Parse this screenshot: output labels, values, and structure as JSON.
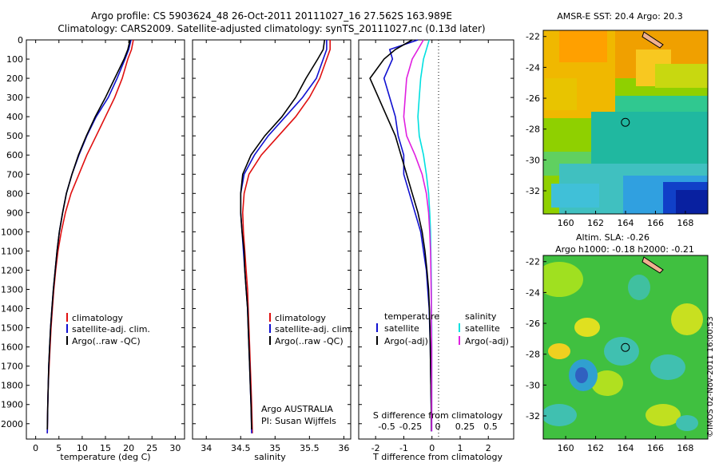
{
  "title_line1": "Argo profile: CS 5903624_48 26-Oct-2011 20111027_16 27.562S 163.989E",
  "title_line2": "Climatology: CARS2009. Satellite-adjusted climatology: synTS_20111027.nc (0.13d later)",
  "side_stamp": "©IMOS 02-Nov-2011 16:00:53",
  "colors": {
    "climatology": "#e01010",
    "satellite": "#1010d0",
    "argo": "#000000",
    "sal_sat": "#00e0e0",
    "sal_argo": "#e020e0"
  },
  "chart_data": [
    {
      "type": "line",
      "xlabel": "temperature (deg C)",
      "ylabel": "",
      "xlim": [
        -2,
        32
      ],
      "ylim": [
        0,
        2080
      ],
      "y_reversed": true,
      "x_ticks": [
        0,
        5,
        10,
        15,
        20,
        25,
        30
      ],
      "y_ticks": [
        0,
        100,
        200,
        300,
        400,
        500,
        600,
        700,
        800,
        900,
        1000,
        1100,
        1200,
        1300,
        1400,
        1500,
        1600,
        1700,
        1800,
        1900,
        2000
      ],
      "legend": [
        "climatology",
        "satellite-adj. clim.",
        "Argo(..raw -QC)"
      ],
      "series": [
        {
          "name": "climatology",
          "color": "climatology",
          "x": [
            21,
            20.6,
            19.8,
            18.6,
            17,
            15,
            13,
            11,
            9.3,
            7.6,
            6.4,
            5.5,
            4.8,
            4.3,
            3.9,
            3.6,
            3.3,
            3.1,
            2.9,
            2.7,
            2.6,
            2.5
          ],
          "y": [
            0,
            50,
            100,
            200,
            300,
            400,
            500,
            600,
            700,
            800,
            900,
            1000,
            1100,
            1200,
            1300,
            1400,
            1500,
            1600,
            1700,
            1800,
            1900,
            2050
          ]
        },
        {
          "name": "satellite-adj. clim.",
          "color": "satellite",
          "x": [
            20.5,
            20,
            19.2,
            17.5,
            15.6,
            13,
            11,
            9.3,
            7.8,
            6.6,
            5.8,
            5.1,
            4.6,
            4.2,
            3.8,
            3.5,
            3.2,
            3,
            2.8,
            2.7,
            2.6,
            2.5
          ],
          "y": [
            0,
            50,
            100,
            200,
            300,
            400,
            500,
            600,
            700,
            800,
            900,
            1000,
            1100,
            1200,
            1300,
            1400,
            1500,
            1600,
            1700,
            1800,
            1900,
            2050
          ]
        },
        {
          "name": "Argo(..raw -QC)",
          "color": "argo",
          "x": [
            20.3,
            19.8,
            19,
            17,
            15,
            12.8,
            10.9,
            9.2,
            7.8,
            6.6,
            5.8,
            5.1,
            4.6,
            4.2,
            3.8,
            3.5,
            3.2,
            3,
            2.8,
            2.7,
            2.6,
            2.5
          ],
          "y": [
            0,
            50,
            100,
            200,
            300,
            400,
            500,
            600,
            700,
            800,
            900,
            1000,
            1100,
            1200,
            1300,
            1400,
            1500,
            1600,
            1700,
            1800,
            1900,
            2030
          ]
        }
      ]
    },
    {
      "type": "line",
      "xlabel": "salinity",
      "ylabel": "",
      "xlim": [
        33.8,
        36.1
      ],
      "ylim": [
        0,
        2080
      ],
      "y_reversed": true,
      "x_ticks": [
        34,
        34.5,
        35,
        35.5,
        36
      ],
      "legend": [
        "climatology",
        "satellite-adj. clim.",
        "Argo(..raw -QC)"
      ],
      "annotation": [
        "Argo AUSTRALIA",
        "PI: Susan Wijffels"
      ],
      "series": [
        {
          "name": "climatology",
          "color": "climatology",
          "x": [
            35.8,
            35.8,
            35.75,
            35.65,
            35.5,
            35.3,
            35.05,
            34.8,
            34.62,
            34.55,
            34.53,
            34.54,
            34.56,
            34.58,
            34.6,
            34.61,
            34.62,
            34.63,
            34.64,
            34.65,
            34.66,
            34.67
          ],
          "y": [
            0,
            50,
            100,
            200,
            300,
            400,
            500,
            600,
            700,
            800,
            900,
            1000,
            1100,
            1200,
            1300,
            1400,
            1500,
            1600,
            1700,
            1800,
            1900,
            2050
          ]
        },
        {
          "name": "satellite-adj. clim.",
          "color": "satellite",
          "x": [
            35.75,
            35.75,
            35.7,
            35.6,
            35.4,
            35.15,
            34.9,
            34.7,
            34.55,
            34.5,
            34.5,
            34.52,
            34.54,
            34.56,
            34.58,
            34.6,
            34.61,
            34.62,
            34.63,
            34.64,
            34.65,
            34.66
          ],
          "y": [
            0,
            50,
            100,
            200,
            300,
            400,
            500,
            600,
            700,
            800,
            900,
            1000,
            1100,
            1200,
            1300,
            1400,
            1500,
            1600,
            1700,
            1800,
            1900,
            2050
          ]
        },
        {
          "name": "Argo(..raw -QC)",
          "color": "argo",
          "x": [
            35.72,
            35.7,
            35.62,
            35.45,
            35.3,
            35.1,
            34.85,
            34.65,
            34.53,
            34.5,
            34.5,
            34.52,
            34.55,
            34.56,
            34.58,
            34.6,
            34.61,
            34.62,
            34.63,
            34.64,
            34.65,
            34.66
          ],
          "y": [
            0,
            50,
            100,
            200,
            300,
            400,
            500,
            600,
            700,
            800,
            900,
            1000,
            1100,
            1200,
            1300,
            1400,
            1500,
            1600,
            1700,
            1800,
            1900,
            2030
          ]
        }
      ]
    },
    {
      "type": "line",
      "xlabel": "T difference from climatology",
      "ylabel": "",
      "top_axis_label": "S difference from climatology",
      "xlim": [
        -2.6,
        2.9
      ],
      "ylim": [
        0,
        2080
      ],
      "y_reversed": true,
      "x_ticks": [
        -2,
        -1,
        0,
        1,
        2
      ],
      "top_ticks": [
        "-0.5",
        "-0.25",
        "0",
        "0.25",
        "0.5"
      ],
      "legend_temperature": [
        "temperature",
        "satellite",
        "Argo(-adj)"
      ],
      "legend_salinity": [
        "salinity",
        "satellite",
        "Argo(-adj)"
      ],
      "series": [
        {
          "name": "satellite",
          "color": "satellite",
          "x": [
            -0.5,
            -1.5,
            -1.4,
            -1.7,
            -1.5,
            -1.3,
            -1.2,
            -1,
            -1,
            -0.8,
            -0.6,
            -0.4,
            -0.3,
            -0.2,
            -0.15,
            -0.1,
            -0.08,
            -0.06,
            -0.05,
            -0.04,
            -0.03,
            -0.02
          ],
          "y": [
            0,
            50,
            100,
            200,
            300,
            400,
            500,
            600,
            700,
            800,
            900,
            1000,
            1100,
            1200,
            1300,
            1400,
            1500,
            1600,
            1700,
            1800,
            1900,
            2040
          ]
        },
        {
          "name": "Argo(-adj)",
          "color": "argo",
          "x": [
            -0.7,
            -1.3,
            -1.7,
            -2.2,
            -1.9,
            -1.6,
            -1.3,
            -1.1,
            -0.9,
            -0.7,
            -0.5,
            -0.35,
            -0.25,
            -0.18,
            -0.12,
            -0.09,
            -0.07,
            -0.06,
            -0.05,
            -0.04,
            -0.03,
            -0.02
          ],
          "y": [
            0,
            50,
            100,
            200,
            300,
            400,
            500,
            600,
            700,
            800,
            900,
            1000,
            1100,
            1200,
            1300,
            1400,
            1500,
            1600,
            1700,
            1800,
            1900,
            2040
          ]
        },
        {
          "name": "satellite",
          "color": "sal_sat",
          "x": [
            -0.1,
            -0.2,
            -0.3,
            -0.4,
            -0.45,
            -0.5,
            -0.45,
            -0.3,
            -0.2,
            -0.12,
            -0.08,
            -0.05,
            -0.04,
            -0.03,
            -0.02,
            -0.02,
            -0.01,
            -0.01,
            -0.01,
            -0.01,
            -0.01,
            -0.01
          ],
          "y": [
            0,
            50,
            100,
            200,
            300,
            400,
            500,
            600,
            700,
            800,
            900,
            1000,
            1100,
            1200,
            1300,
            1400,
            1500,
            1600,
            1700,
            1800,
            1900,
            2040
          ]
        },
        {
          "name": "Argo(-adj)",
          "color": "sal_argo",
          "x": [
            -0.3,
            -0.5,
            -0.7,
            -0.9,
            -0.95,
            -1,
            -0.9,
            -0.6,
            -0.35,
            -0.2,
            -0.12,
            -0.08,
            -0.05,
            -0.04,
            -0.03,
            -0.02,
            -0.02,
            -0.01,
            -0.01,
            -0.01,
            -0.01,
            -0.01
          ],
          "y": [
            0,
            50,
            100,
            200,
            300,
            400,
            500,
            600,
            700,
            800,
            900,
            1000,
            1100,
            1200,
            1300,
            1400,
            1500,
            1600,
            1700,
            1800,
            1900,
            2040
          ]
        }
      ]
    },
    {
      "type": "heatmap",
      "title": "AMSR-E SST: 20.4  Argo: 20.3",
      "xlim": [
        158.5,
        169.5
      ],
      "ylim": [
        -33.5,
        -21.6
      ],
      "x_ticks": [
        160,
        162,
        164,
        166,
        168
      ],
      "y_ticks": [
        -22,
        -24,
        -26,
        -28,
        -30,
        -32
      ],
      "marker": {
        "lon": 163.989,
        "lat": -27.562
      }
    },
    {
      "type": "heatmap",
      "title_line1": "Altim. SLA: -0.26",
      "title_line2": "Argo h1000: -0.18  h2000: -0.21",
      "xlim": [
        158.5,
        169.5
      ],
      "ylim": [
        -33.5,
        -21.6
      ],
      "x_ticks": [
        160,
        162,
        164,
        166,
        168
      ],
      "y_ticks": [
        -22,
        -24,
        -26,
        -28,
        -30,
        -32
      ],
      "marker": {
        "lon": 163.989,
        "lat": -27.562
      }
    }
  ]
}
